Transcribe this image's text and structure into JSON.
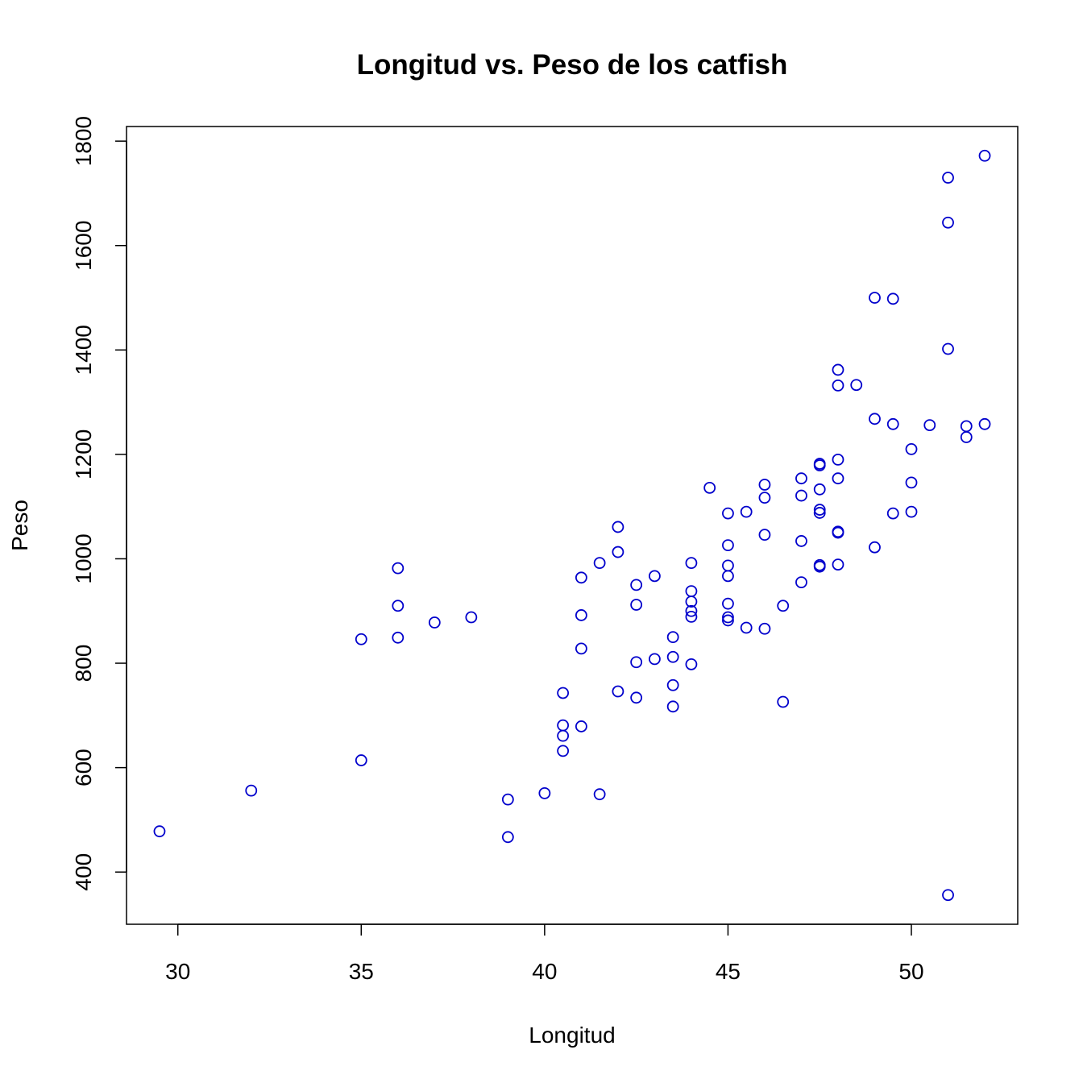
{
  "chart_data": {
    "type": "scatter",
    "title": "Longitud vs. Peso de los catfish",
    "xlabel": "Longitud",
    "ylabel": "Peso",
    "xlim": [
      28.6,
      52.9
    ],
    "ylim": [
      300,
      1828
    ],
    "xticks": [
      30,
      35,
      40,
      45,
      50
    ],
    "yticks": [
      400,
      600,
      800,
      1000,
      1200,
      1400,
      1600,
      1800
    ],
    "grid": false,
    "marker": "open-circle",
    "point_color": "#0000cc",
    "points": [
      [
        29.5,
        478
      ],
      [
        32,
        556
      ],
      [
        35,
        846
      ],
      [
        35,
        614
      ],
      [
        36,
        982
      ],
      [
        36,
        910
      ],
      [
        36,
        849
      ],
      [
        37,
        878
      ],
      [
        38,
        888
      ],
      [
        39,
        539
      ],
      [
        39,
        467
      ],
      [
        40,
        551
      ],
      [
        40.5,
        743
      ],
      [
        40.5,
        681
      ],
      [
        40.5,
        661
      ],
      [
        40.5,
        632
      ],
      [
        41,
        964
      ],
      [
        41,
        892
      ],
      [
        41,
        828
      ],
      [
        41,
        679
      ],
      [
        41.5,
        992
      ],
      [
        41.5,
        549
      ],
      [
        42,
        1061
      ],
      [
        42,
        1013
      ],
      [
        42,
        746
      ],
      [
        42.5,
        950
      ],
      [
        42.5,
        912
      ],
      [
        42.5,
        802
      ],
      [
        42.5,
        734
      ],
      [
        43,
        967
      ],
      [
        43,
        808
      ],
      [
        43.5,
        850
      ],
      [
        43.5,
        812
      ],
      [
        43.5,
        758
      ],
      [
        43.5,
        717
      ],
      [
        44,
        992
      ],
      [
        44,
        938
      ],
      [
        44,
        918
      ],
      [
        44,
        900
      ],
      [
        44,
        889
      ],
      [
        44,
        798
      ],
      [
        44.5,
        1136
      ],
      [
        45,
        1087
      ],
      [
        45,
        1026
      ],
      [
        45,
        987
      ],
      [
        45,
        967
      ],
      [
        45,
        914
      ],
      [
        45,
        888
      ],
      [
        45,
        882
      ],
      [
        45.5,
        1090
      ],
      [
        45.5,
        868
      ],
      [
        46,
        1142
      ],
      [
        46,
        1117
      ],
      [
        46,
        1046
      ],
      [
        46,
        866
      ],
      [
        46.5,
        910
      ],
      [
        46.5,
        726
      ],
      [
        47,
        1154
      ],
      [
        47,
        1121
      ],
      [
        47,
        1034
      ],
      [
        47,
        955
      ],
      [
        47.5,
        1182
      ],
      [
        47.5,
        1179
      ],
      [
        47.5,
        1133
      ],
      [
        47.5,
        1094
      ],
      [
        47.5,
        1088
      ],
      [
        47.5,
        988
      ],
      [
        47.5,
        985
      ],
      [
        48,
        1362
      ],
      [
        48,
        1332
      ],
      [
        48,
        1190
      ],
      [
        48,
        1154
      ],
      [
        48,
        1052
      ],
      [
        48,
        1050
      ],
      [
        48,
        989
      ],
      [
        48.5,
        1333
      ],
      [
        49,
        1500
      ],
      [
        49,
        1268
      ],
      [
        49,
        1022
      ],
      [
        49.5,
        1498
      ],
      [
        49.5,
        1258
      ],
      [
        49.5,
        1087
      ],
      [
        50,
        1210
      ],
      [
        50,
        1146
      ],
      [
        50,
        1090
      ],
      [
        50.5,
        1256
      ],
      [
        51,
        1730
      ],
      [
        51,
        1644
      ],
      [
        51,
        1402
      ],
      [
        51,
        356
      ],
      [
        51.5,
        1254
      ],
      [
        51.5,
        1233
      ],
      [
        52,
        1772
      ],
      [
        52,
        1258
      ]
    ]
  }
}
